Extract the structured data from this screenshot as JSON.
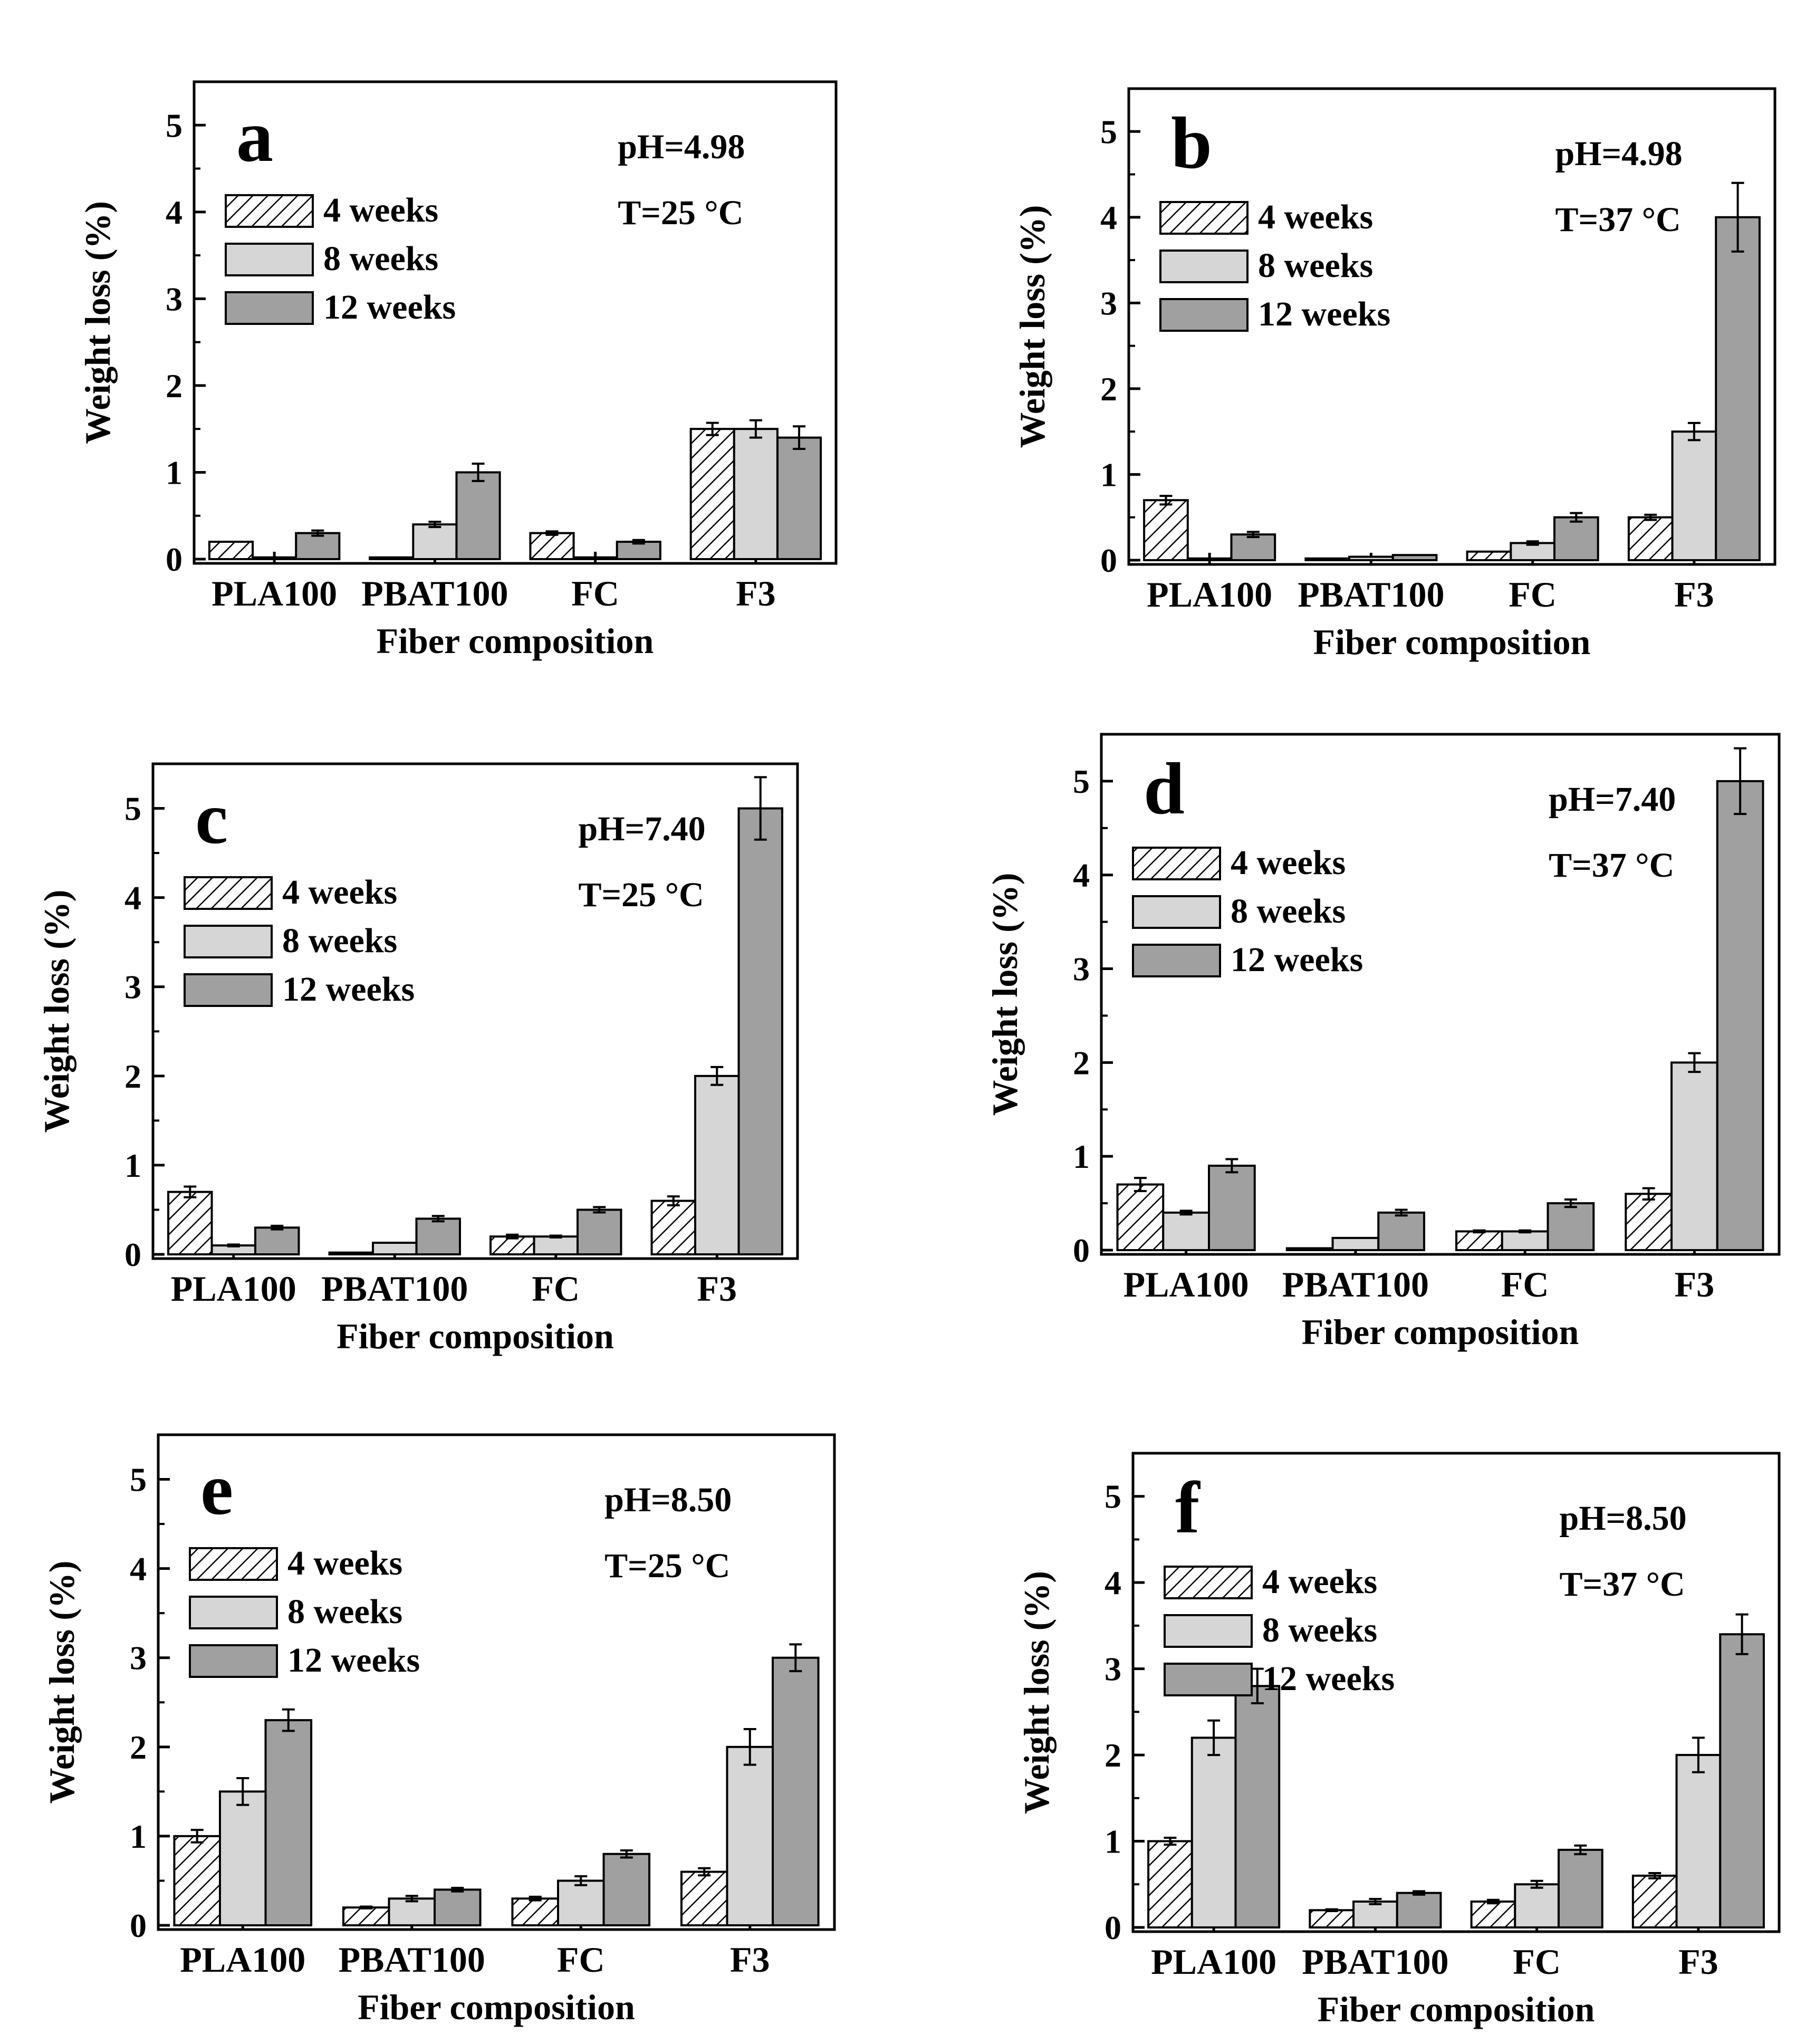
{
  "colors": {
    "w4": "#ffffff",
    "w8": "#d6d6d6",
    "w12": "#a0a0a0",
    "axis": "#000000"
  },
  "legend_labels": [
    "4 weeks",
    "8 weeks",
    "12 weeks"
  ],
  "chart_data": [
    {
      "type": "bar",
      "panel_label": "a",
      "condition_ph": "pH=4.98",
      "condition_t": "T=25 °C",
      "xlabel": "Fiber composition",
      "ylabel": "Weight loss (%)",
      "categories": [
        "PLA100",
        "PBAT100",
        "FC",
        "F3"
      ],
      "ylim": [
        0,
        5.5
      ],
      "yticks": [
        "0",
        "1",
        "2",
        "3",
        "4",
        "5"
      ],
      "series": [
        {
          "name": "4 weeks",
          "values": [
            0.2,
            0.02,
            0.3,
            1.5
          ],
          "errors": [
            0,
            0,
            0.02,
            0.07
          ]
        },
        {
          "name": "8 weeks",
          "values": [
            0.02,
            0.4,
            0.02,
            1.5
          ],
          "errors": [
            0,
            0.03,
            0,
            0.1
          ]
        },
        {
          "name": "12 weeks",
          "values": [
            0.3,
            1.0,
            0.2,
            1.4
          ],
          "errors": [
            0.03,
            0.1,
            0.02,
            0.13
          ]
        }
      ]
    },
    {
      "type": "bar",
      "panel_label": "b",
      "condition_ph": "pH=4.98",
      "condition_t": "T=37 °C",
      "xlabel": "Fiber composition",
      "ylabel": "Weight loss (%)",
      "categories": [
        "PLA100",
        "PBAT100",
        "FC",
        "F3"
      ],
      "ylim": [
        0,
        5.5
      ],
      "yticks": [
        "0",
        "1",
        "2",
        "3",
        "4",
        "5"
      ],
      "series": [
        {
          "name": "4 weeks",
          "values": [
            0.7,
            0.02,
            0.1,
            0.5
          ],
          "errors": [
            0.05,
            0,
            0,
            0.03
          ]
        },
        {
          "name": "8 weeks",
          "values": [
            0.02,
            0.04,
            0.2,
            1.5
          ],
          "errors": [
            0,
            0,
            0.02,
            0.1
          ]
        },
        {
          "name": "12 weeks",
          "values": [
            0.3,
            0.06,
            0.5,
            4.0
          ],
          "errors": [
            0.03,
            0,
            0.05,
            0.4
          ]
        }
      ]
    },
    {
      "type": "bar",
      "panel_label": "c",
      "condition_ph": "pH=7.40",
      "condition_t": "T=25 °C",
      "xlabel": "Fiber composition",
      "ylabel": "Weight loss (%)",
      "categories": [
        "PLA100",
        "PBAT100",
        "FC",
        "F3"
      ],
      "ylim": [
        0,
        5.5
      ],
      "yticks": [
        "0",
        "1",
        "2",
        "3",
        "4",
        "5"
      ],
      "series": [
        {
          "name": "4 weeks",
          "values": [
            0.7,
            0.02,
            0.2,
            0.6
          ],
          "errors": [
            0.06,
            0,
            0.02,
            0.05
          ]
        },
        {
          "name": "8 weeks",
          "values": [
            0.1,
            0.13,
            0.2,
            2.0
          ],
          "errors": [
            0.01,
            0,
            0.01,
            0.1
          ]
        },
        {
          "name": "12 weeks",
          "values": [
            0.3,
            0.4,
            0.5,
            5.0
          ],
          "errors": [
            0.02,
            0.03,
            0.03,
            0.35
          ]
        }
      ]
    },
    {
      "type": "bar",
      "panel_label": "d",
      "condition_ph": "pH=7.40",
      "condition_t": "T=37 °C",
      "xlabel": "Fiber composition",
      "ylabel": "Weight loss (%)",
      "categories": [
        "PLA100",
        "PBAT100",
        "FC",
        "F3"
      ],
      "ylim": [
        0,
        5.5
      ],
      "yticks": [
        "0",
        "1",
        "2",
        "3",
        "4",
        "5"
      ],
      "series": [
        {
          "name": "4 weeks",
          "values": [
            0.7,
            0.02,
            0.2,
            0.6
          ],
          "errors": [
            0.07,
            0,
            0.01,
            0.06
          ]
        },
        {
          "name": "8 weeks",
          "values": [
            0.4,
            0.13,
            0.2,
            2.0
          ],
          "errors": [
            0.02,
            0,
            0.01,
            0.1
          ]
        },
        {
          "name": "12 weeks",
          "values": [
            0.9,
            0.4,
            0.5,
            5.0
          ],
          "errors": [
            0.07,
            0.03,
            0.04,
            0.35
          ]
        }
      ]
    },
    {
      "type": "bar",
      "panel_label": "e",
      "condition_ph": "pH=8.50",
      "condition_t": "T=25 °C",
      "xlabel": "Fiber composition",
      "ylabel": "Weight loss (%)",
      "categories": [
        "PLA100",
        "PBAT100",
        "FC",
        "F3"
      ],
      "ylim": [
        0,
        5.5
      ],
      "yticks": [
        "0",
        "1",
        "2",
        "3",
        "4",
        "5"
      ],
      "series": [
        {
          "name": "4 weeks",
          "values": [
            1.0,
            0.2,
            0.3,
            0.6
          ],
          "errors": [
            0.07,
            0.01,
            0.02,
            0.04
          ]
        },
        {
          "name": "8 weeks",
          "values": [
            1.5,
            0.3,
            0.5,
            2.0
          ],
          "errors": [
            0.15,
            0.03,
            0.05,
            0.2
          ]
        },
        {
          "name": "12 weeks",
          "values": [
            2.3,
            0.4,
            0.8,
            3.0
          ],
          "errors": [
            0.12,
            0.02,
            0.04,
            0.15
          ]
        }
      ]
    },
    {
      "type": "bar",
      "panel_label": "f",
      "condition_ph": "pH=8.50",
      "condition_t": "T=37 °C",
      "xlabel": "Fiber composition",
      "ylabel": "Weight loss (%)",
      "categories": [
        "PLA100",
        "PBAT100",
        "FC",
        "F3"
      ],
      "ylim": [
        0,
        5.5
      ],
      "yticks": [
        "0",
        "1",
        "2",
        "3",
        "4",
        "5"
      ],
      "series": [
        {
          "name": "4 weeks",
          "values": [
            1.0,
            0.2,
            0.3,
            0.6
          ],
          "errors": [
            0.04,
            0.01,
            0.02,
            0.03
          ]
        },
        {
          "name": "8 weeks",
          "values": [
            2.2,
            0.3,
            0.5,
            2.0
          ],
          "errors": [
            0.2,
            0.03,
            0.04,
            0.2
          ]
        },
        {
          "name": "12 weeks",
          "values": [
            2.8,
            0.4,
            0.9,
            3.4
          ],
          "errors": [
            0.2,
            0.02,
            0.05,
            0.23
          ]
        }
      ]
    }
  ]
}
